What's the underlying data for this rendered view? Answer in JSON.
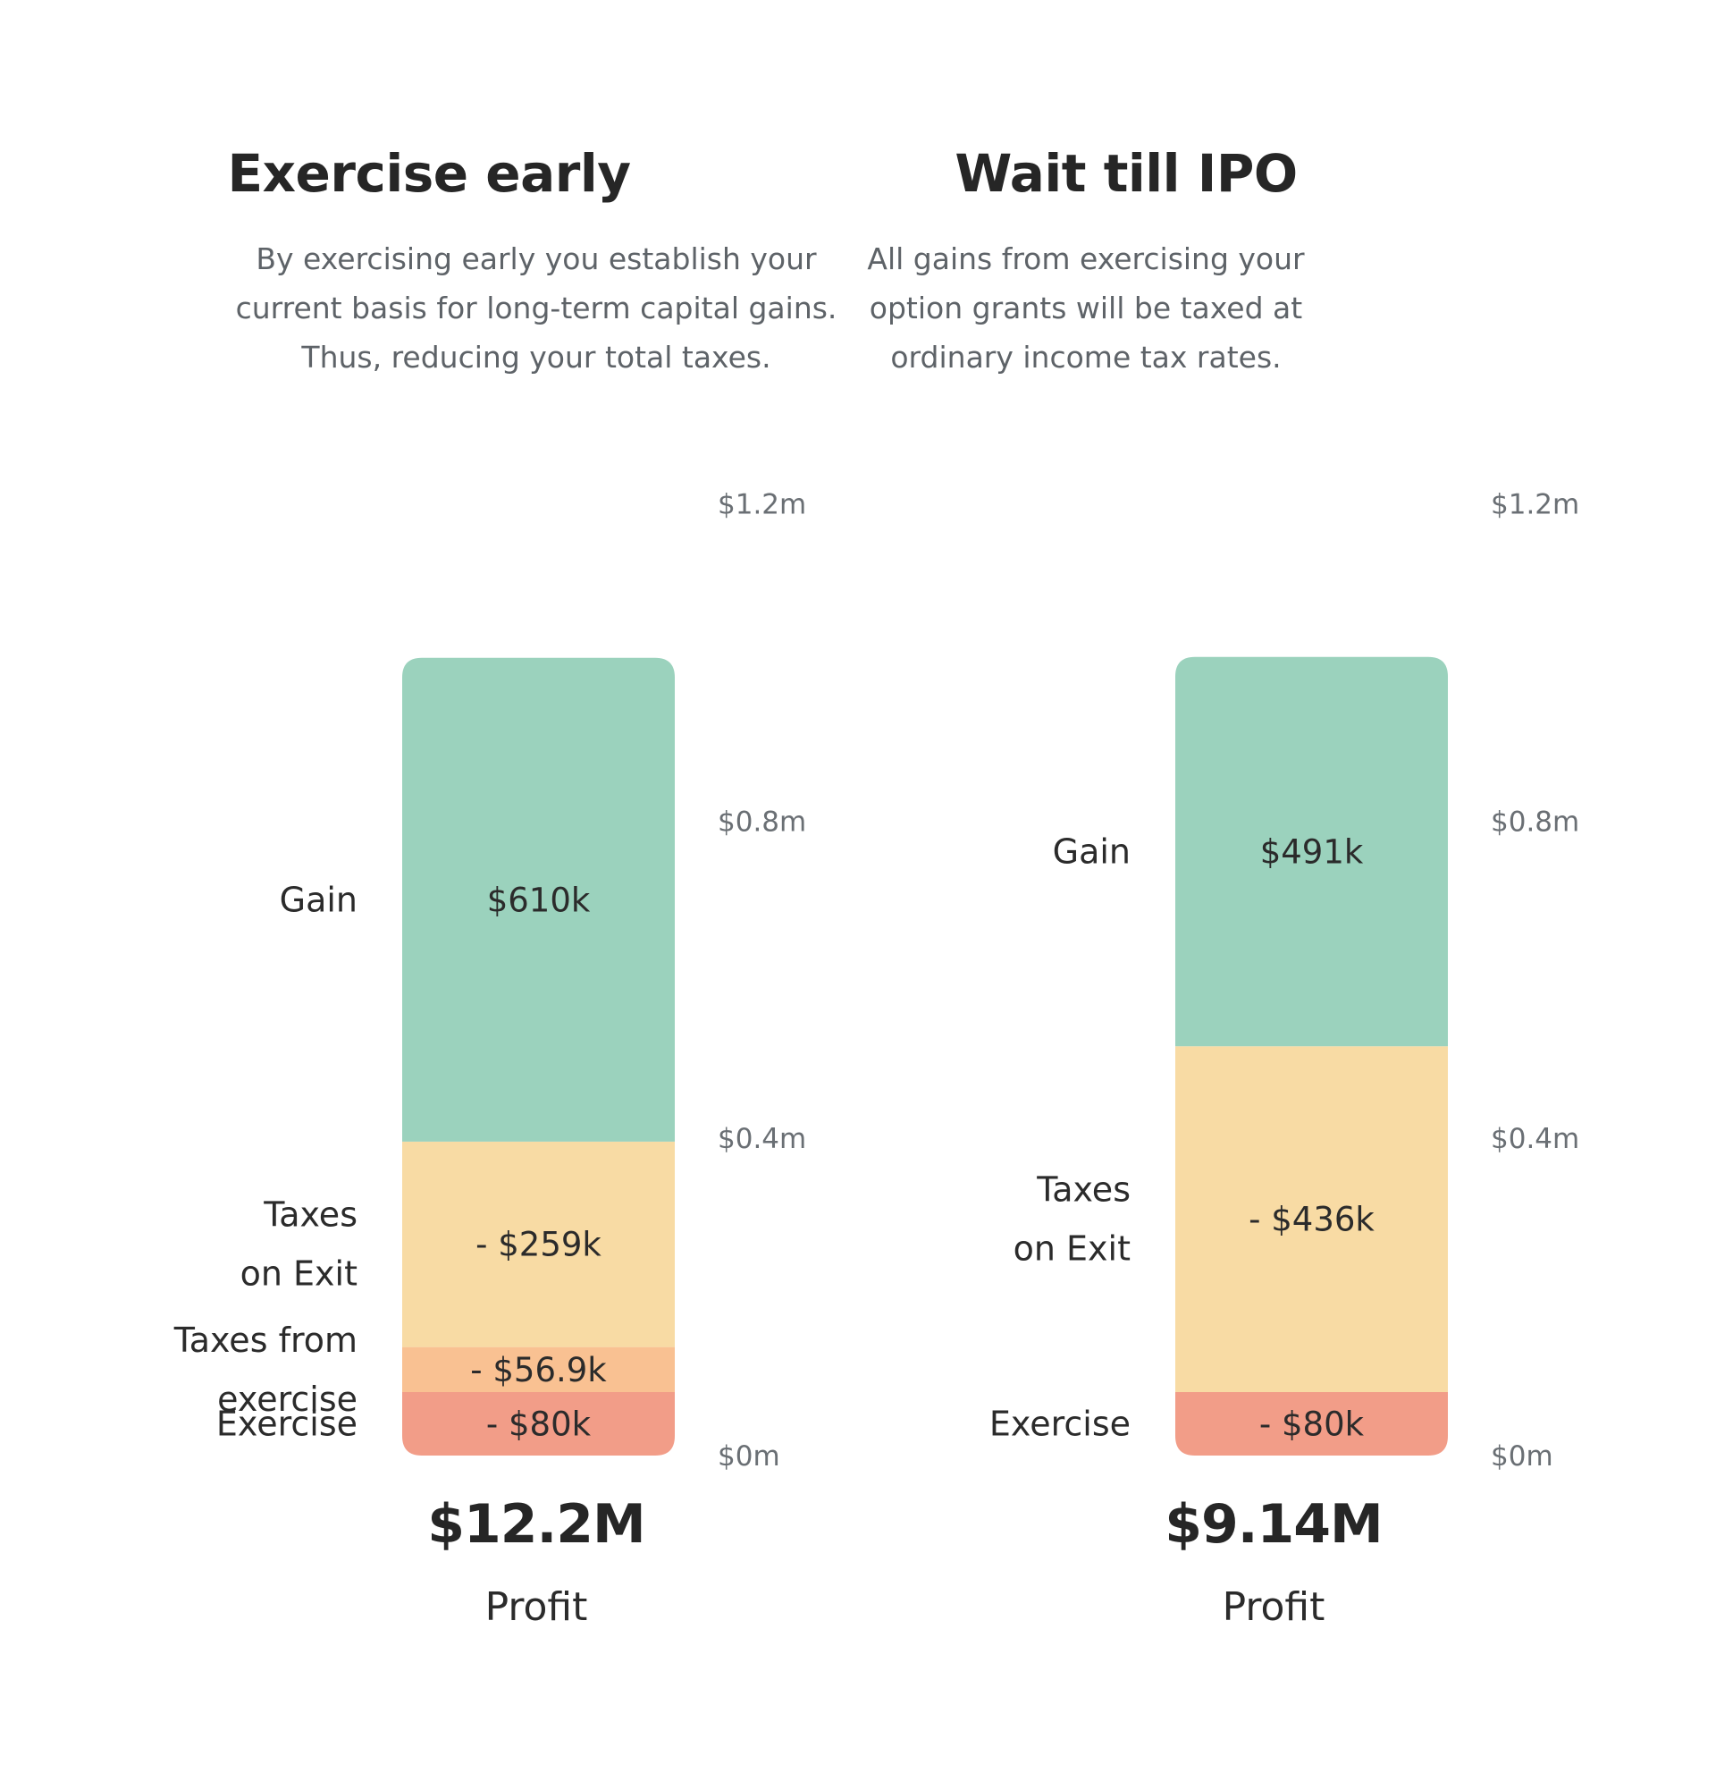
{
  "colors": {
    "gain": "#9bd2bd",
    "taxes_on_exit": "#f8dba4",
    "taxes_from_exercise": "#f9c192",
    "exercise": "#f29d88",
    "text": "#2b2b2b",
    "muted": "#6a6f74"
  },
  "chart_data": [
    {
      "type": "bar",
      "stacked": true,
      "title": "Exercise early",
      "subtitle_lines": [
        "By exercising early you establish your",
        "current basis for long-term capital gains.",
        "Thus, reducing your total taxes."
      ],
      "ylim": [
        0,
        1.2
      ],
      "yticks": [
        0,
        0.4,
        0.8,
        1.2
      ],
      "ytick_labels": [
        "$0m",
        "$0.4m",
        "$0.8m",
        "$1.2m"
      ],
      "segments": [
        {
          "key": "exercise",
          "category_lines": [
            "Exercise"
          ],
          "value": 0.08,
          "value_label": "- $80k",
          "color": "#f29d88"
        },
        {
          "key": "taxes_from_exercise",
          "category_lines": [
            "Taxes from",
            "exercise"
          ],
          "value": 0.0569,
          "value_label": "- $56.9k",
          "color": "#f9c192"
        },
        {
          "key": "taxes_on_exit",
          "category_lines": [
            "Taxes",
            "on Exit"
          ],
          "value": 0.259,
          "value_label": "- $259k",
          "color": "#f8dba4"
        },
        {
          "key": "gain",
          "category_lines": [
            "Gain"
          ],
          "value": 0.61,
          "value_label": "$610k",
          "color": "#9bd2bd"
        }
      ],
      "total": "$12.2M",
      "total_label": "Profit"
    },
    {
      "type": "bar",
      "stacked": true,
      "title": "Wait till IPO",
      "subtitle_lines": [
        "All gains from exercising your",
        "option grants will be taxed at",
        "ordinary income tax rates."
      ],
      "ylim": [
        0,
        1.2
      ],
      "yticks": [
        0,
        0.4,
        0.8,
        1.2
      ],
      "ytick_labels": [
        "$0m",
        "$0.4m",
        "$0.8m",
        "$1.2m"
      ],
      "segments": [
        {
          "key": "exercise",
          "category_lines": [
            "Exercise"
          ],
          "value": 0.08,
          "value_label": "- $80k",
          "color": "#f29d88"
        },
        {
          "key": "taxes_on_exit",
          "category_lines": [
            "Taxes",
            "on Exit"
          ],
          "value": 0.436,
          "value_label": "- $436k",
          "color": "#f8dba4"
        },
        {
          "key": "gain",
          "category_lines": [
            "Gain"
          ],
          "value": 0.491,
          "value_label": "$491k",
          "color": "#9bd2bd"
        }
      ],
      "total": "$9.14M",
      "total_label": "Profit"
    }
  ]
}
